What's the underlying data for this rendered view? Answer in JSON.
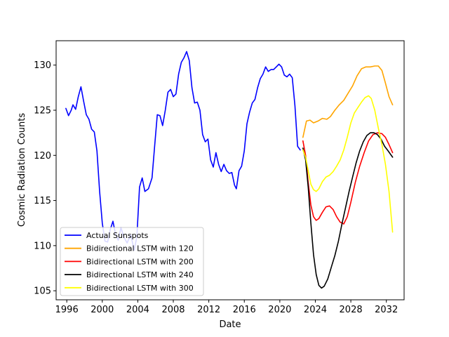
{
  "chart_data": {
    "type": "line",
    "title": "",
    "xlabel": "Date",
    "ylabel": "Cosmic Radiation Counts",
    "xlim": [
      1994.8,
      2034.0
    ],
    "ylim": [
      104.0,
      132.7
    ],
    "x_ticks": [
      1996,
      2000,
      2004,
      2008,
      2012,
      2016,
      2020,
      2024,
      2028,
      2032
    ],
    "y_ticks": [
      105,
      110,
      115,
      120,
      125,
      130
    ],
    "grid": false,
    "legend_position": "lower-left",
    "series": [
      {
        "name": "Actual Sunspots",
        "color": "#0000ff",
        "points": [
          [
            1995.9,
            125.2
          ],
          [
            1996.2,
            124.4
          ],
          [
            1996.5,
            125.0
          ],
          [
            1996.7,
            125.6
          ],
          [
            1997.0,
            125.1
          ],
          [
            1997.3,
            126.5
          ],
          [
            1997.6,
            127.6
          ],
          [
            1997.9,
            126.0
          ],
          [
            1998.2,
            124.5
          ],
          [
            1998.5,
            124.0
          ],
          [
            1998.8,
            122.9
          ],
          [
            1999.1,
            122.6
          ],
          [
            1999.4,
            120.5
          ],
          [
            1999.7,
            116.0
          ],
          [
            2000.0,
            112.5
          ],
          [
            2000.3,
            110.5
          ],
          [
            2000.6,
            110.4
          ],
          [
            2000.9,
            111.8
          ],
          [
            2001.2,
            112.7
          ],
          [
            2001.5,
            111.2
          ],
          [
            2001.8,
            110.6
          ],
          [
            2002.1,
            112.0
          ],
          [
            2002.4,
            111.0
          ],
          [
            2002.8,
            110.3
          ],
          [
            2003.2,
            111.2
          ],
          [
            2003.6,
            109.5
          ],
          [
            2003.9,
            111.0
          ],
          [
            2004.2,
            116.5
          ],
          [
            2004.5,
            117.5
          ],
          [
            2004.8,
            116.0
          ],
          [
            2005.2,
            116.3
          ],
          [
            2005.6,
            117.5
          ],
          [
            2005.9,
            121.0
          ],
          [
            2006.2,
            124.5
          ],
          [
            2006.5,
            124.4
          ],
          [
            2006.8,
            123.3
          ],
          [
            2007.1,
            125.0
          ],
          [
            2007.4,
            127.0
          ],
          [
            2007.7,
            127.3
          ],
          [
            2008.0,
            126.5
          ],
          [
            2008.3,
            126.8
          ],
          [
            2008.6,
            129.0
          ],
          [
            2008.9,
            130.3
          ],
          [
            2009.2,
            130.8
          ],
          [
            2009.5,
            131.5
          ],
          [
            2009.8,
            130.5
          ],
          [
            2010.1,
            127.5
          ],
          [
            2010.4,
            125.8
          ],
          [
            2010.7,
            125.9
          ],
          [
            2011.0,
            125.0
          ],
          [
            2011.3,
            122.3
          ],
          [
            2011.6,
            121.5
          ],
          [
            2011.9,
            121.8
          ],
          [
            2012.2,
            119.5
          ],
          [
            2012.5,
            118.7
          ],
          [
            2012.8,
            120.3
          ],
          [
            2013.1,
            119.0
          ],
          [
            2013.4,
            118.2
          ],
          [
            2013.7,
            119.0
          ],
          [
            2014.0,
            118.3
          ],
          [
            2014.3,
            118.0
          ],
          [
            2014.6,
            118.1
          ],
          [
            2014.9,
            116.7
          ],
          [
            2015.1,
            116.3
          ],
          [
            2015.4,
            118.3
          ],
          [
            2015.7,
            118.8
          ],
          [
            2016.0,
            120.5
          ],
          [
            2016.3,
            123.5
          ],
          [
            2016.6,
            124.8
          ],
          [
            2016.9,
            125.8
          ],
          [
            2017.2,
            126.2
          ],
          [
            2017.5,
            127.5
          ],
          [
            2017.8,
            128.5
          ],
          [
            2018.1,
            129.0
          ],
          [
            2018.4,
            129.8
          ],
          [
            2018.7,
            129.3
          ],
          [
            2019.0,
            129.5
          ],
          [
            2019.3,
            129.5
          ],
          [
            2019.6,
            129.8
          ],
          [
            2019.9,
            130.1
          ],
          [
            2020.2,
            129.8
          ],
          [
            2020.5,
            128.9
          ],
          [
            2020.8,
            128.7
          ],
          [
            2021.1,
            129.0
          ],
          [
            2021.4,
            128.6
          ],
          [
            2021.7,
            125.5
          ],
          [
            2022.0,
            121.0
          ],
          [
            2022.3,
            120.6
          ]
        ]
      },
      {
        "name": "Bidirectional LSTM with 120",
        "color": "#ffa500",
        "points": [
          [
            2022.6,
            122.0
          ],
          [
            2023.0,
            123.8
          ],
          [
            2023.4,
            123.9
          ],
          [
            2023.8,
            123.6
          ],
          [
            2024.3,
            123.8
          ],
          [
            2024.8,
            124.1
          ],
          [
            2025.3,
            124.0
          ],
          [
            2025.7,
            124.3
          ],
          [
            2026.2,
            125.0
          ],
          [
            2026.7,
            125.6
          ],
          [
            2027.2,
            126.1
          ],
          [
            2027.7,
            126.9
          ],
          [
            2028.2,
            127.7
          ],
          [
            2028.7,
            128.8
          ],
          [
            2029.2,
            129.6
          ],
          [
            2029.7,
            129.8
          ],
          [
            2030.2,
            129.8
          ],
          [
            2030.7,
            129.9
          ],
          [
            2031.1,
            129.9
          ],
          [
            2031.5,
            129.4
          ],
          [
            2031.9,
            128.0
          ],
          [
            2032.3,
            126.5
          ],
          [
            2032.7,
            125.6
          ]
        ]
      },
      {
        "name": "Bidirectional LSTM with 200",
        "color": "#ff0000",
        "points": [
          [
            2022.6,
            121.6
          ],
          [
            2022.9,
            120.0
          ],
          [
            2023.2,
            117.0
          ],
          [
            2023.5,
            114.5
          ],
          [
            2023.8,
            113.2
          ],
          [
            2024.1,
            112.8
          ],
          [
            2024.4,
            113.0
          ],
          [
            2024.8,
            113.7
          ],
          [
            2025.2,
            114.3
          ],
          [
            2025.6,
            114.4
          ],
          [
            2026.0,
            114.0
          ],
          [
            2026.4,
            113.2
          ],
          [
            2026.8,
            112.6
          ],
          [
            2027.2,
            112.4
          ],
          [
            2027.6,
            113.2
          ],
          [
            2028.0,
            114.8
          ],
          [
            2028.5,
            117.0
          ],
          [
            2029.0,
            118.8
          ],
          [
            2029.5,
            120.3
          ],
          [
            2030.0,
            121.6
          ],
          [
            2030.5,
            122.3
          ],
          [
            2031.0,
            122.5
          ],
          [
            2031.5,
            122.4
          ],
          [
            2031.9,
            122.0
          ],
          [
            2032.3,
            121.2
          ],
          [
            2032.7,
            120.3
          ]
        ]
      },
      {
        "name": "Bidirectional LSTM with 240",
        "color": "#000000",
        "points": [
          [
            2022.6,
            120.8
          ],
          [
            2022.9,
            119.5
          ],
          [
            2023.2,
            116.5
          ],
          [
            2023.5,
            112.5
          ],
          [
            2023.8,
            109.0
          ],
          [
            2024.1,
            106.8
          ],
          [
            2024.4,
            105.6
          ],
          [
            2024.7,
            105.3
          ],
          [
            2025.0,
            105.5
          ],
          [
            2025.4,
            106.3
          ],
          [
            2025.8,
            107.6
          ],
          [
            2026.2,
            108.9
          ],
          [
            2026.6,
            110.5
          ],
          [
            2027.0,
            112.4
          ],
          [
            2027.4,
            114.2
          ],
          [
            2027.8,
            116.0
          ],
          [
            2028.2,
            117.6
          ],
          [
            2028.6,
            119.2
          ],
          [
            2029.0,
            120.5
          ],
          [
            2029.4,
            121.5
          ],
          [
            2029.8,
            122.2
          ],
          [
            2030.2,
            122.5
          ],
          [
            2030.6,
            122.5
          ],
          [
            2031.0,
            122.3
          ],
          [
            2031.4,
            121.8
          ],
          [
            2031.8,
            121.0
          ],
          [
            2032.2,
            120.5
          ],
          [
            2032.7,
            119.8
          ]
        ]
      },
      {
        "name": "Bidirectional LSTM with 300",
        "color": "#ffff00",
        "points": [
          [
            2022.6,
            120.6
          ],
          [
            2022.9,
            119.8
          ],
          [
            2023.2,
            118.3
          ],
          [
            2023.5,
            116.8
          ],
          [
            2023.8,
            116.2
          ],
          [
            2024.1,
            116.0
          ],
          [
            2024.4,
            116.3
          ],
          [
            2024.8,
            117.1
          ],
          [
            2025.2,
            117.6
          ],
          [
            2025.6,
            117.8
          ],
          [
            2026.0,
            118.2
          ],
          [
            2026.4,
            118.8
          ],
          [
            2026.8,
            119.5
          ],
          [
            2027.2,
            120.6
          ],
          [
            2027.6,
            122.0
          ],
          [
            2028.0,
            123.6
          ],
          [
            2028.4,
            124.7
          ],
          [
            2028.8,
            125.3
          ],
          [
            2029.2,
            125.9
          ],
          [
            2029.6,
            126.4
          ],
          [
            2030.0,
            126.6
          ],
          [
            2030.3,
            126.3
          ],
          [
            2030.7,
            125.0
          ],
          [
            2031.1,
            123.0
          ],
          [
            2031.5,
            121.2
          ],
          [
            2031.9,
            119.0
          ],
          [
            2032.3,
            116.0
          ],
          [
            2032.7,
            111.5
          ]
        ]
      }
    ]
  }
}
